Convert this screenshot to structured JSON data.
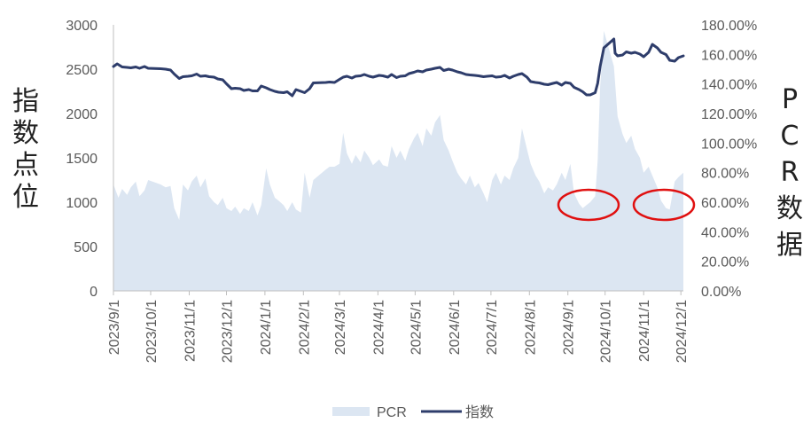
{
  "chart_data": {
    "type": "line",
    "title": "",
    "left_axis_label": "指数点位",
    "right_axis_label": "PCR数据",
    "y_left": {
      "min": 0,
      "max": 3000,
      "ticks": [
        "0",
        "500",
        "1000",
        "1500",
        "2000",
        "2500",
        "3000"
      ]
    },
    "y_right": {
      "min": 0,
      "max": 1.8,
      "ticks": [
        "0.00%",
        "20.00%",
        "40.00%",
        "60.00%",
        "80.00%",
        "100.00%",
        "120.00%",
        "140.00%",
        "160.00%",
        "180.00%"
      ]
    },
    "x_range": [
      "2023-09-01",
      "2024-12-03"
    ],
    "x_ticks": [
      "2023/9/1",
      "2023/10/1",
      "2023/11/1",
      "2023/12/1",
      "2024/1/1",
      "2024/2/1",
      "2024/3/1",
      "2024/4/1",
      "2024/5/1",
      "2024/6/1",
      "2024/7/1",
      "2024/8/1",
      "2024/9/1",
      "2024/10/1",
      "2024/11/1",
      "2024/12/1"
    ],
    "grid": false,
    "legend_position": "bottom",
    "series": [
      {
        "name": "PCR",
        "type": "area",
        "axis": "right",
        "color": "#dce6f2",
        "points": [
          [
            "2023-09-01",
            0.72
          ],
          [
            "2023-09-05",
            0.63
          ],
          [
            "2023-09-08",
            0.69
          ],
          [
            "2023-09-12",
            0.65
          ],
          [
            "2023-09-15",
            0.7
          ],
          [
            "2023-09-19",
            0.74
          ],
          [
            "2023-09-22",
            0.64
          ],
          [
            "2023-09-26",
            0.68
          ],
          [
            "2023-09-29",
            0.75
          ],
          [
            "2023-10-09",
            0.72
          ],
          [
            "2023-10-13",
            0.7
          ],
          [
            "2023-10-17",
            0.71
          ],
          [
            "2023-10-20",
            0.56
          ],
          [
            "2023-10-24",
            0.48
          ],
          [
            "2023-10-27",
            0.72
          ],
          [
            "2023-10-31",
            0.68
          ],
          [
            "2023-11-03",
            0.74
          ],
          [
            "2023-11-07",
            0.78
          ],
          [
            "2023-11-10",
            0.7
          ],
          [
            "2023-11-14",
            0.76
          ],
          [
            "2023-11-17",
            0.64
          ],
          [
            "2023-11-21",
            0.6
          ],
          [
            "2023-11-24",
            0.58
          ],
          [
            "2023-11-28",
            0.63
          ],
          [
            "2023-12-01",
            0.56
          ],
          [
            "2023-12-05",
            0.54
          ],
          [
            "2023-12-08",
            0.57
          ],
          [
            "2023-12-12",
            0.52
          ],
          [
            "2023-12-15",
            0.56
          ],
          [
            "2023-12-19",
            0.54
          ],
          [
            "2023-12-22",
            0.6
          ],
          [
            "2023-12-26",
            0.51
          ],
          [
            "2023-12-29",
            0.58
          ],
          [
            "2024-01-02",
            0.83
          ],
          [
            "2024-01-05",
            0.72
          ],
          [
            "2024-01-09",
            0.63
          ],
          [
            "2024-01-12",
            0.61
          ],
          [
            "2024-01-16",
            0.58
          ],
          [
            "2024-01-19",
            0.54
          ],
          [
            "2024-01-23",
            0.6
          ],
          [
            "2024-01-26",
            0.55
          ],
          [
            "2024-01-30",
            0.53
          ],
          [
            "2024-02-02",
            0.8
          ],
          [
            "2024-02-06",
            0.63
          ],
          [
            "2024-02-09",
            0.75
          ],
          [
            "2024-02-19",
            0.82
          ],
          [
            "2024-02-22",
            0.84
          ],
          [
            "2024-02-26",
            0.84
          ],
          [
            "2024-03-01",
            0.86
          ],
          [
            "2024-03-04",
            1.07
          ],
          [
            "2024-03-07",
            0.93
          ],
          [
            "2024-03-11",
            0.86
          ],
          [
            "2024-03-14",
            0.92
          ],
          [
            "2024-03-18",
            0.87
          ],
          [
            "2024-03-21",
            0.95
          ],
          [
            "2024-03-25",
            0.9
          ],
          [
            "2024-03-28",
            0.85
          ],
          [
            "2024-04-02",
            0.89
          ],
          [
            "2024-04-05",
            0.85
          ],
          [
            "2024-04-09",
            0.84
          ],
          [
            "2024-04-12",
            0.98
          ],
          [
            "2024-04-16",
            0.9
          ],
          [
            "2024-04-19",
            0.95
          ],
          [
            "2024-04-23",
            0.88
          ],
          [
            "2024-04-26",
            0.96
          ],
          [
            "2024-04-30",
            1.03
          ],
          [
            "2024-05-03",
            1.07
          ],
          [
            "2024-05-07",
            0.98
          ],
          [
            "2024-05-10",
            1.1
          ],
          [
            "2024-05-14",
            1.05
          ],
          [
            "2024-05-17",
            1.14
          ],
          [
            "2024-05-21",
            1.19
          ],
          [
            "2024-05-24",
            1.02
          ],
          [
            "2024-05-28",
            0.95
          ],
          [
            "2024-05-31",
            0.88
          ],
          [
            "2024-06-04",
            0.8
          ],
          [
            "2024-06-07",
            0.76
          ],
          [
            "2024-06-11",
            0.72
          ],
          [
            "2024-06-14",
            0.78
          ],
          [
            "2024-06-18",
            0.7
          ],
          [
            "2024-06-21",
            0.73
          ],
          [
            "2024-06-25",
            0.66
          ],
          [
            "2024-06-28",
            0.6
          ],
          [
            "2024-07-02",
            0.75
          ],
          [
            "2024-07-05",
            0.8
          ],
          [
            "2024-07-09",
            0.72
          ],
          [
            "2024-07-12",
            0.78
          ],
          [
            "2024-07-16",
            0.75
          ],
          [
            "2024-07-19",
            0.83
          ],
          [
            "2024-07-23",
            0.9
          ],
          [
            "2024-07-26",
            1.1
          ],
          [
            "2024-07-30",
            0.96
          ],
          [
            "2024-08-02",
            0.86
          ],
          [
            "2024-08-06",
            0.78
          ],
          [
            "2024-08-09",
            0.74
          ],
          [
            "2024-08-13",
            0.66
          ],
          [
            "2024-08-16",
            0.7
          ],
          [
            "2024-08-20",
            0.68
          ],
          [
            "2024-08-23",
            0.72
          ],
          [
            "2024-08-27",
            0.8
          ],
          [
            "2024-08-30",
            0.75
          ],
          [
            "2024-09-03",
            0.86
          ],
          [
            "2024-09-06",
            0.66
          ],
          [
            "2024-09-10",
            0.59
          ],
          [
            "2024-09-13",
            0.56
          ],
          [
            "2024-09-16",
            0.58
          ],
          [
            "2024-09-19",
            0.6
          ],
          [
            "2024-09-23",
            0.64
          ],
          [
            "2024-09-25",
            0.88
          ],
          [
            "2024-09-27",
            1.38
          ],
          [
            "2024-09-30",
            1.76
          ],
          [
            "2024-10-08",
            1.52
          ],
          [
            "2024-10-11",
            1.18
          ],
          [
            "2024-10-15",
            1.06
          ],
          [
            "2024-10-18",
            1.0
          ],
          [
            "2024-10-22",
            1.05
          ],
          [
            "2024-10-25",
            0.96
          ],
          [
            "2024-10-29",
            0.9
          ],
          [
            "2024-11-01",
            0.8
          ],
          [
            "2024-11-05",
            0.84
          ],
          [
            "2024-11-08",
            0.78
          ],
          [
            "2024-11-12",
            0.7
          ],
          [
            "2024-11-15",
            0.61
          ],
          [
            "2024-11-19",
            0.56
          ],
          [
            "2024-11-22",
            0.55
          ],
          [
            "2024-11-26",
            0.74
          ],
          [
            "2024-11-29",
            0.77
          ],
          [
            "2024-12-03",
            0.8
          ]
        ]
      },
      {
        "name": "指数",
        "type": "line",
        "axis": "left",
        "color": "#2e3d6b",
        "points": [
          [
            "2023-09-01",
            2530
          ],
          [
            "2023-09-04",
            2560
          ],
          [
            "2023-09-08",
            2525
          ],
          [
            "2023-09-12",
            2520
          ],
          [
            "2023-09-15",
            2515
          ],
          [
            "2023-09-19",
            2525
          ],
          [
            "2023-09-22",
            2510
          ],
          [
            "2023-09-26",
            2530
          ],
          [
            "2023-09-29",
            2510
          ],
          [
            "2023-10-09",
            2505
          ],
          [
            "2023-10-13",
            2500
          ],
          [
            "2023-10-17",
            2490
          ],
          [
            "2023-10-20",
            2445
          ],
          [
            "2023-10-24",
            2395
          ],
          [
            "2023-10-27",
            2415
          ],
          [
            "2023-10-31",
            2420
          ],
          [
            "2023-11-03",
            2425
          ],
          [
            "2023-11-07",
            2445
          ],
          [
            "2023-11-10",
            2420
          ],
          [
            "2023-11-14",
            2425
          ],
          [
            "2023-11-17",
            2415
          ],
          [
            "2023-11-21",
            2410
          ],
          [
            "2023-11-24",
            2390
          ],
          [
            "2023-11-28",
            2380
          ],
          [
            "2023-12-01",
            2335
          ],
          [
            "2023-12-05",
            2280
          ],
          [
            "2023-12-08",
            2285
          ],
          [
            "2023-12-12",
            2280
          ],
          [
            "2023-12-15",
            2260
          ],
          [
            "2023-12-19",
            2270
          ],
          [
            "2023-12-22",
            2255
          ],
          [
            "2023-12-26",
            2255
          ],
          [
            "2023-12-29",
            2310
          ],
          [
            "2024-01-02",
            2290
          ],
          [
            "2024-01-05",
            2270
          ],
          [
            "2024-01-09",
            2250
          ],
          [
            "2024-01-12",
            2240
          ],
          [
            "2024-01-16",
            2235
          ],
          [
            "2024-01-19",
            2245
          ],
          [
            "2024-01-23",
            2200
          ],
          [
            "2024-01-26",
            2270
          ],
          [
            "2024-01-30",
            2250
          ],
          [
            "2024-02-02",
            2235
          ],
          [
            "2024-02-06",
            2280
          ],
          [
            "2024-02-09",
            2345
          ],
          [
            "2024-02-19",
            2350
          ],
          [
            "2024-02-22",
            2355
          ],
          [
            "2024-02-26",
            2350
          ],
          [
            "2024-03-01",
            2385
          ],
          [
            "2024-03-04",
            2410
          ],
          [
            "2024-03-07",
            2420
          ],
          [
            "2024-03-11",
            2400
          ],
          [
            "2024-03-14",
            2420
          ],
          [
            "2024-03-18",
            2425
          ],
          [
            "2024-03-21",
            2440
          ],
          [
            "2024-03-25",
            2420
          ],
          [
            "2024-03-28",
            2410
          ],
          [
            "2024-04-02",
            2430
          ],
          [
            "2024-04-05",
            2425
          ],
          [
            "2024-04-09",
            2410
          ],
          [
            "2024-04-12",
            2440
          ],
          [
            "2024-04-16",
            2405
          ],
          [
            "2024-04-19",
            2420
          ],
          [
            "2024-04-23",
            2425
          ],
          [
            "2024-04-26",
            2450
          ],
          [
            "2024-04-30",
            2465
          ],
          [
            "2024-05-03",
            2480
          ],
          [
            "2024-05-07",
            2470
          ],
          [
            "2024-05-10",
            2490
          ],
          [
            "2024-05-14",
            2500
          ],
          [
            "2024-05-17",
            2510
          ],
          [
            "2024-05-21",
            2520
          ],
          [
            "2024-05-24",
            2485
          ],
          [
            "2024-05-28",
            2500
          ],
          [
            "2024-05-31",
            2490
          ],
          [
            "2024-06-04",
            2470
          ],
          [
            "2024-06-07",
            2460
          ],
          [
            "2024-06-11",
            2440
          ],
          [
            "2024-06-14",
            2435
          ],
          [
            "2024-06-18",
            2430
          ],
          [
            "2024-06-21",
            2425
          ],
          [
            "2024-06-25",
            2415
          ],
          [
            "2024-06-28",
            2420
          ],
          [
            "2024-07-02",
            2425
          ],
          [
            "2024-07-05",
            2410
          ],
          [
            "2024-07-09",
            2415
          ],
          [
            "2024-07-12",
            2430
          ],
          [
            "2024-07-16",
            2400
          ],
          [
            "2024-07-19",
            2420
          ],
          [
            "2024-07-23",
            2440
          ],
          [
            "2024-07-26",
            2450
          ],
          [
            "2024-07-30",
            2410
          ],
          [
            "2024-08-02",
            2360
          ],
          [
            "2024-08-06",
            2350
          ],
          [
            "2024-08-09",
            2345
          ],
          [
            "2024-08-13",
            2330
          ],
          [
            "2024-08-16",
            2325
          ],
          [
            "2024-08-20",
            2340
          ],
          [
            "2024-08-23",
            2350
          ],
          [
            "2024-08-27",
            2320
          ],
          [
            "2024-08-30",
            2350
          ],
          [
            "2024-09-03",
            2340
          ],
          [
            "2024-09-06",
            2295
          ],
          [
            "2024-09-10",
            2270
          ],
          [
            "2024-09-13",
            2245
          ],
          [
            "2024-09-16",
            2210
          ],
          [
            "2024-09-19",
            2210
          ],
          [
            "2024-09-23",
            2235
          ],
          [
            "2024-09-25",
            2340
          ],
          [
            "2024-09-27",
            2530
          ],
          [
            "2024-09-30",
            2740
          ],
          [
            "2024-10-08",
            2840
          ],
          [
            "2024-10-09",
            2680
          ],
          [
            "2024-10-11",
            2650
          ],
          [
            "2024-10-15",
            2660
          ],
          [
            "2024-10-18",
            2695
          ],
          [
            "2024-10-22",
            2680
          ],
          [
            "2024-10-25",
            2690
          ],
          [
            "2024-10-29",
            2670
          ],
          [
            "2024-11-01",
            2640
          ],
          [
            "2024-11-05",
            2690
          ],
          [
            "2024-11-08",
            2780
          ],
          [
            "2024-11-12",
            2740
          ],
          [
            "2024-11-15",
            2690
          ],
          [
            "2024-11-19",
            2665
          ],
          [
            "2024-11-22",
            2600
          ],
          [
            "2024-11-26",
            2590
          ],
          [
            "2024-11-29",
            2630
          ],
          [
            "2024-12-03",
            2650
          ]
        ]
      }
    ]
  }
}
